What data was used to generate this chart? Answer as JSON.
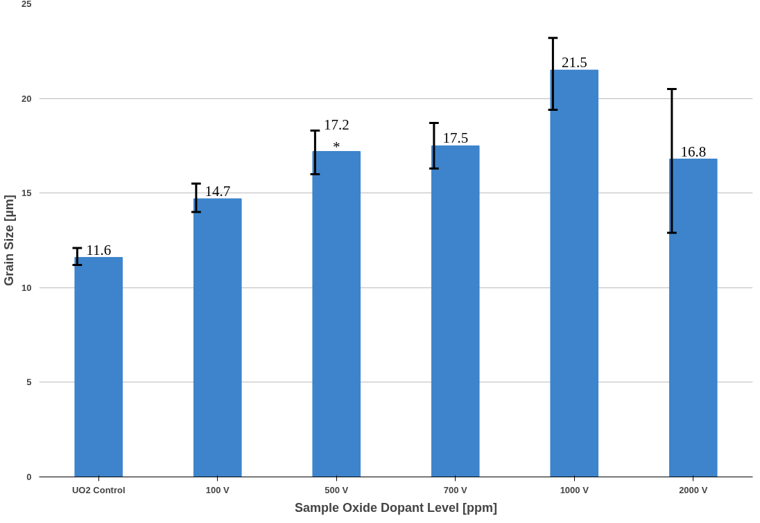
{
  "chart_data": {
    "type": "bar",
    "xlabel": "Sample Oxide Dopant Level [ppm]",
    "ylabel": "Grain Size [µm]",
    "categories": [
      "UO2 Control",
      "100 V",
      "500 V",
      "700 V",
      "1000 V",
      "2000 V"
    ],
    "values": [
      11.6,
      14.7,
      17.2,
      17.5,
      21.5,
      16.8
    ],
    "errors": [
      [
        11.2,
        12.1
      ],
      [
        14.0,
        15.5
      ],
      [
        16.0,
        18.3
      ],
      [
        16.3,
        18.7
      ],
      [
        19.4,
        23.2
      ],
      [
        12.9,
        20.5
      ]
    ],
    "color": "#3d84cc",
    "data_labels": true,
    "annotations": [
      {
        "text": "*",
        "x": "500 V",
        "y": 17.2
      }
    ],
    "ylim": [
      0,
      25
    ],
    "yticks": [
      0,
      5,
      10,
      15,
      20,
      25
    ],
    "grid": "y",
    "legend": false
  }
}
